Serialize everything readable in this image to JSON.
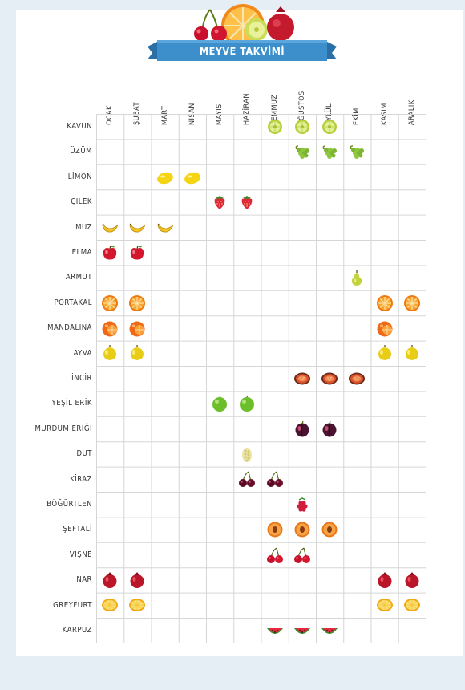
{
  "title": "MEYVE TAKVİMİ",
  "months": [
    "OCAK",
    "ŞUBAT",
    "MART",
    "NİSAN",
    "MAYIS",
    "HAZİRAN",
    "TEMMUZ",
    "AĞUSTOS",
    "EYLÜL",
    "EKİM",
    "KASIM",
    "ARALIK"
  ],
  "fruits": [
    {
      "name": "KAVUN",
      "icon": "melon-icon",
      "months": [
        7,
        8,
        9
      ]
    },
    {
      "name": "ÜZÜM",
      "icon": "grape-icon",
      "months": [
        8,
        9,
        10
      ]
    },
    {
      "name": "LİMON",
      "icon": "lemon-icon",
      "months": [
        3,
        4
      ]
    },
    {
      "name": "ÇİLEK",
      "icon": "strawberry-icon",
      "months": [
        5,
        6
      ]
    },
    {
      "name": "MUZ",
      "icon": "banana-icon",
      "months": [
        1,
        2,
        3
      ]
    },
    {
      "name": "ELMA",
      "icon": "apple-icon",
      "months": [
        1,
        2
      ]
    },
    {
      "name": "ARMUT",
      "icon": "pear-icon",
      "months": [
        10
      ]
    },
    {
      "name": "PORTAKAL",
      "icon": "orange-icon",
      "months": [
        1,
        2,
        11,
        12
      ]
    },
    {
      "name": "MANDALİNA",
      "icon": "tangerine-icon",
      "months": [
        1,
        2,
        11
      ]
    },
    {
      "name": "AYVA",
      "icon": "quince-icon",
      "months": [
        1,
        2,
        11,
        12
      ]
    },
    {
      "name": "İNCİR",
      "icon": "fig-icon",
      "months": [
        8,
        9,
        10
      ]
    },
    {
      "name": "YEŞİL ERİK",
      "icon": "green-plum-icon",
      "months": [
        5,
        6
      ]
    },
    {
      "name": "MÜRDÜM ERİĞİ",
      "icon": "damson-plum-icon",
      "months": [
        8,
        9
      ]
    },
    {
      "name": "DUT",
      "icon": "mulberry-icon",
      "months": [
        6
      ]
    },
    {
      "name": "KİRAZ",
      "icon": "cherry-icon",
      "months": [
        6,
        7
      ]
    },
    {
      "name": "BÖĞÜRTLEN",
      "icon": "blackberry-icon",
      "months": [
        8
      ]
    },
    {
      "name": "ŞEFTALİ",
      "icon": "peach-icon",
      "months": [
        7,
        8,
        9
      ]
    },
    {
      "name": "VİŞNE",
      "icon": "sour-cherry-icon",
      "months": [
        7,
        8
      ]
    },
    {
      "name": "NAR",
      "icon": "pomegranate-icon",
      "months": [
        1,
        2,
        11,
        12
      ]
    },
    {
      "name": "GREYFURT",
      "icon": "grapefruit-icon",
      "months": [
        1,
        2,
        11,
        12
      ]
    },
    {
      "name": "KARPUZ",
      "icon": "watermelon-icon",
      "months": [
        7,
        8,
        9
      ]
    }
  ],
  "colors": {
    "banner": "#3d8fcc",
    "banner_dark": "#2a6fa6",
    "background": "#e6eef5",
    "grid_line": "#d6d6d6"
  }
}
